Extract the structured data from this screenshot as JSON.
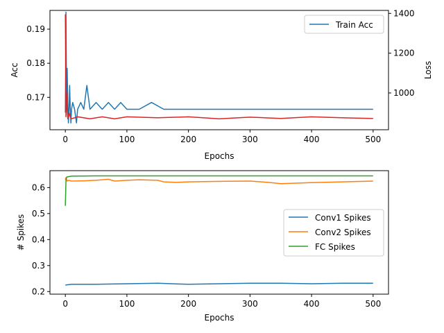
{
  "chart_data": [
    {
      "type": "line",
      "xlabel": "Epochs",
      "ylabel": "Acc",
      "y2label": "Loss",
      "xlim": [
        -25,
        525
      ],
      "ylim": [
        0.1605,
        0.1955
      ],
      "y2lim": [
        815,
        1415
      ],
      "xticks": [
        0,
        100,
        200,
        300,
        400,
        500
      ],
      "yticks": [
        0.17,
        0.18,
        0.19
      ],
      "y2ticks": [
        1000,
        1200,
        1400
      ],
      "legend_position": "top-right",
      "series": [
        {
          "name": "Train Acc",
          "axis": "left",
          "color": "#1f77b4",
          "x": [
            0,
            1,
            2,
            3,
            4,
            5,
            6,
            7,
            8,
            9,
            10,
            12,
            15,
            18,
            20,
            25,
            30,
            35,
            40,
            50,
            60,
            70,
            80,
            90,
            100,
            120,
            140,
            160,
            180,
            200,
            250,
            300,
            350,
            400,
            450,
            500
          ],
          "values": [
            0.1655,
            0.195,
            0.1665,
            0.1785,
            0.1685,
            0.1625,
            0.1665,
            0.1735,
            0.1665,
            0.1625,
            0.1665,
            0.1685,
            0.1665,
            0.1625,
            0.1665,
            0.1685,
            0.1665,
            0.1735,
            0.1665,
            0.1685,
            0.1665,
            0.1685,
            0.1665,
            0.1685,
            0.1665,
            0.1665,
            0.1685,
            0.1665,
            0.1665,
            0.1665,
            0.1665,
            0.1665,
            0.1665,
            0.1665,
            0.1665,
            0.1665
          ]
        },
        {
          "name": "",
          "axis": "right",
          "color": "#d62728",
          "x": [
            0,
            1,
            2,
            3,
            4,
            5,
            6,
            8,
            10,
            20,
            40,
            60,
            80,
            100,
            150,
            200,
            250,
            300,
            350,
            400,
            450,
            500
          ],
          "values": [
            1395,
            880,
            1000,
            920,
            870,
            890,
            900,
            880,
            870,
            880,
            870,
            880,
            870,
            880,
            875,
            880,
            870,
            878,
            872,
            880,
            875,
            872
          ]
        }
      ]
    },
    {
      "type": "line",
      "xlabel": "Epochs",
      "ylabel": "# Spikes",
      "xlim": [
        -25,
        525
      ],
      "ylim": [
        0.19,
        0.665
      ],
      "xticks": [
        0,
        100,
        200,
        300,
        400,
        500
      ],
      "yticks": [
        0.2,
        0.3,
        0.4,
        0.5,
        0.6
      ],
      "legend_position": "center-right",
      "series": [
        {
          "name": "Conv1 Spikes",
          "color": "#1f77b4",
          "x": [
            0,
            10,
            50,
            100,
            150,
            200,
            250,
            300,
            350,
            400,
            450,
            500
          ],
          "values": [
            0.225,
            0.228,
            0.228,
            0.23,
            0.232,
            0.228,
            0.23,
            0.232,
            0.232,
            0.23,
            0.232,
            0.232
          ]
        },
        {
          "name": "Conv2 Spikes",
          "color": "#ff7f0e",
          "x": [
            0,
            1,
            3,
            5,
            10,
            30,
            50,
            70,
            80,
            100,
            120,
            150,
            160,
            180,
            200,
            250,
            300,
            330,
            350,
            400,
            450,
            500
          ],
          "values": [
            0.63,
            0.638,
            0.625,
            0.628,
            0.625,
            0.626,
            0.628,
            0.632,
            0.625,
            0.628,
            0.63,
            0.628,
            0.622,
            0.62,
            0.622,
            0.624,
            0.625,
            0.62,
            0.615,
            0.619,
            0.622,
            0.625
          ]
        },
        {
          "name": "FC Spikes",
          "color": "#2ca02c",
          "x": [
            0,
            1,
            2,
            5,
            10,
            50,
            100,
            200,
            300,
            400,
            500
          ],
          "values": [
            0.53,
            0.628,
            0.64,
            0.642,
            0.644,
            0.645,
            0.645,
            0.645,
            0.645,
            0.645,
            0.645
          ]
        }
      ]
    }
  ]
}
